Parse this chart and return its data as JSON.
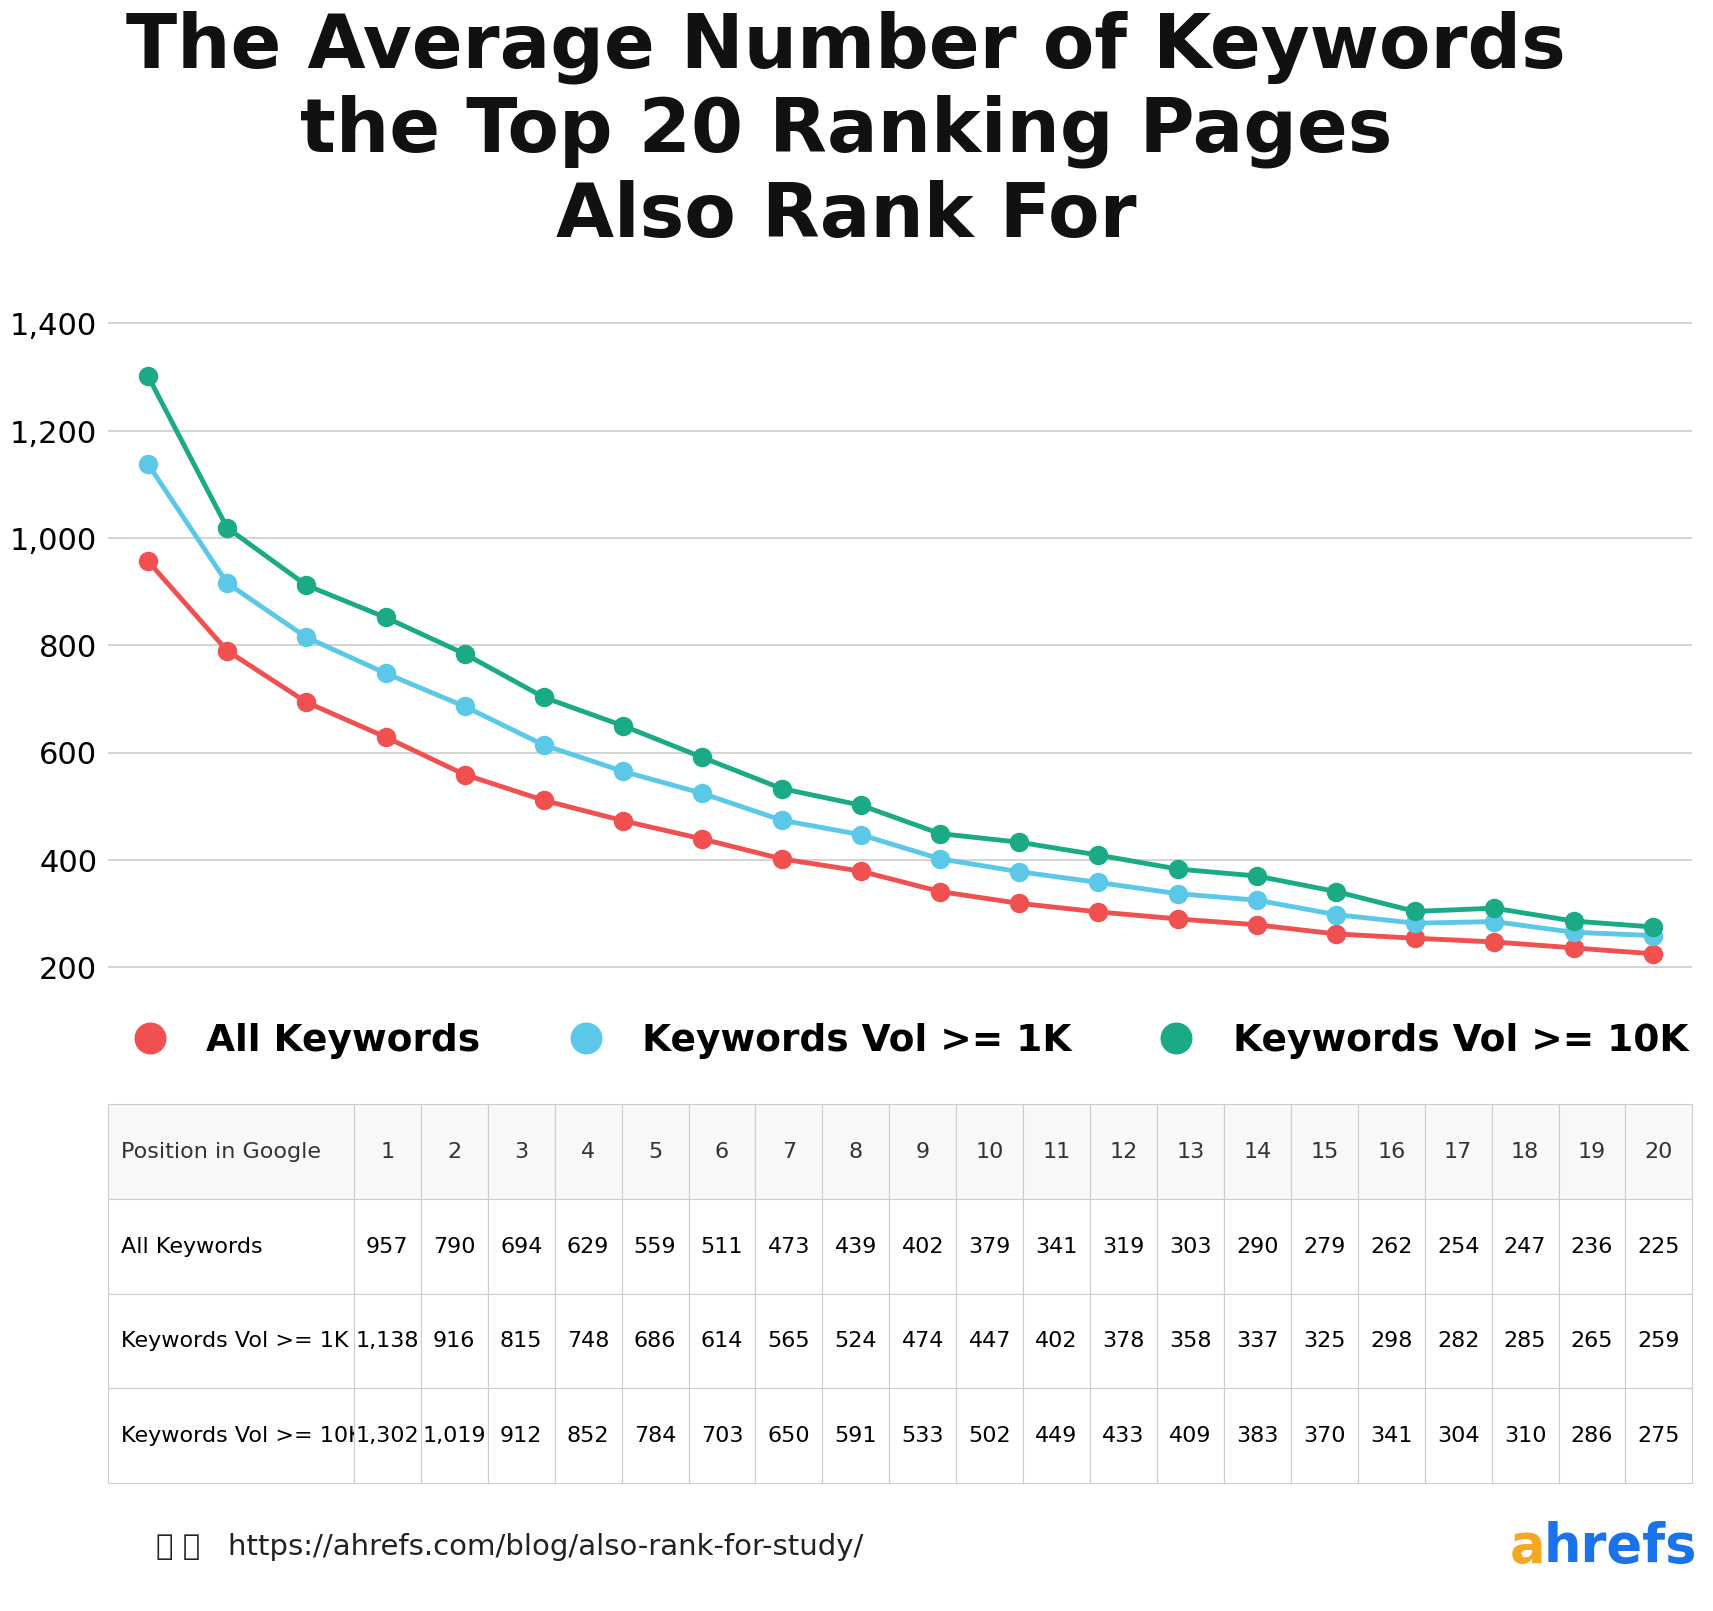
{
  "title": "The Average Number of Keywords\nthe Top 20 Ranking Pages\nAlso Rank For",
  "positions": [
    1,
    2,
    3,
    4,
    5,
    6,
    7,
    8,
    9,
    10,
    11,
    12,
    13,
    14,
    15,
    16,
    17,
    18,
    19,
    20
  ],
  "all_keywords": [
    957,
    790,
    694,
    629,
    559,
    511,
    473,
    439,
    402,
    379,
    341,
    319,
    303,
    290,
    279,
    262,
    254,
    247,
    236,
    225
  ],
  "vol_1k": [
    1138,
    916,
    815,
    748,
    686,
    614,
    565,
    524,
    474,
    447,
    402,
    378,
    358,
    337,
    325,
    298,
    282,
    285,
    265,
    259
  ],
  "vol_10k": [
    1302,
    1019,
    912,
    852,
    784,
    703,
    650,
    591,
    533,
    502,
    449,
    433,
    409,
    383,
    370,
    341,
    304,
    310,
    286,
    275
  ],
  "color_all": "#f05050",
  "color_1k": "#5bc8e8",
  "color_10k": "#1aaa85",
  "ylim": [
    180,
    1420
  ],
  "yticks": [
    200,
    400,
    600,
    800,
    1000,
    1200,
    1400
  ],
  "legend_labels": [
    "All Keywords",
    "Keywords Vol >= 1K",
    "Keywords Vol >= 10K"
  ],
  "url_text": "https://ahrefs.com/blog/also-rank-for-study/",
  "table_row1_label": "All Keywords",
  "table_row2_label": "Keywords Vol >= 1K",
  "table_row3_label": "Keywords Vol >= 10K",
  "background_color": "#ffffff",
  "grid_color": "#cccccc",
  "title_fontsize": 54,
  "tick_fontsize": 22,
  "legend_fontsize": 27,
  "table_header_fontsize": 16,
  "table_data_fontsize": 16,
  "line_width": 3.5,
  "marker_size": 13,
  "ahrefs_a_color": "#f5a623",
  "ahrefs_hrefs_color": "#1a73e8"
}
